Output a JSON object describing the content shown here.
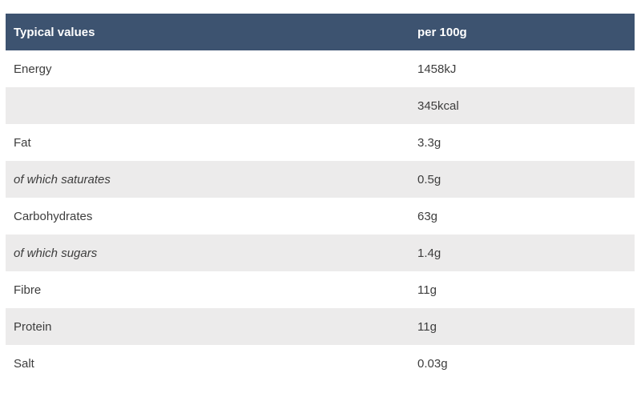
{
  "table": {
    "headers": [
      "Typical values",
      "per 100g"
    ],
    "rows": [
      {
        "name": "Energy",
        "value": "1458kJ",
        "italic": false
      },
      {
        "name": "",
        "value": "345kcal",
        "italic": false
      },
      {
        "name": "Fat",
        "value": "3.3g",
        "italic": false
      },
      {
        "name": "of which saturates",
        "value": "0.5g",
        "italic": true
      },
      {
        "name": "Carbohydrates",
        "value": "63g",
        "italic": false
      },
      {
        "name": "of which sugars",
        "value": "1.4g",
        "italic": true
      },
      {
        "name": "Fibre",
        "value": "11g",
        "italic": false
      },
      {
        "name": "Protein",
        "value": "11g",
        "italic": false
      },
      {
        "name": "Salt",
        "value": "0.03g",
        "italic": false
      }
    ]
  },
  "colors": {
    "header_bg": "#3d5370",
    "header_text": "#ffffff",
    "stripe_bg": "#ecebeb"
  }
}
